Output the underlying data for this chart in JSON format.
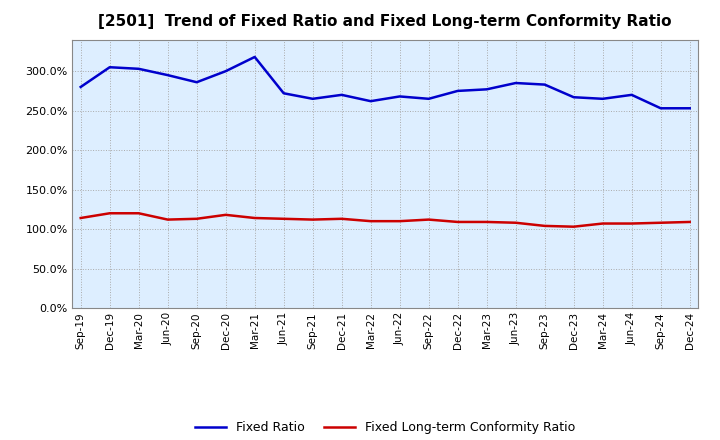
{
  "title": "[2501]  Trend of Fixed Ratio and Fixed Long-term Conformity Ratio",
  "x_labels": [
    "Sep-19",
    "Dec-19",
    "Mar-20",
    "Jun-20",
    "Sep-20",
    "Dec-20",
    "Mar-21",
    "Jun-21",
    "Sep-21",
    "Dec-21",
    "Mar-22",
    "Jun-22",
    "Sep-22",
    "Dec-22",
    "Mar-23",
    "Jun-23",
    "Sep-23",
    "Dec-23",
    "Mar-24",
    "Jun-24",
    "Sep-24",
    "Dec-24"
  ],
  "fixed_ratio": [
    280.0,
    305.0,
    303.0,
    295.0,
    286.0,
    300.0,
    318.0,
    272.0,
    265.0,
    270.0,
    262.0,
    268.0,
    265.0,
    275.0,
    277.0,
    285.0,
    283.0,
    267.0,
    265.0,
    270.0,
    253.0,
    253.0
  ],
  "fixed_lt_ratio": [
    114.0,
    120.0,
    120.0,
    112.0,
    113.0,
    118.0,
    114.0,
    113.0,
    112.0,
    113.0,
    110.0,
    110.0,
    112.0,
    109.0,
    109.0,
    108.0,
    104.0,
    103.0,
    107.0,
    107.0,
    108.0,
    109.0
  ],
  "fixed_ratio_color": "#0000CC",
  "fixed_lt_ratio_color": "#CC0000",
  "bg_color": "#FFFFFF",
  "plot_bg_color": "#DDEEFF",
  "grid_color": "#AAAAAA",
  "ylim": [
    0.0,
    340.0
  ],
  "yticks": [
    0.0,
    50.0,
    100.0,
    150.0,
    200.0,
    250.0,
    300.0
  ],
  "legend_labels": [
    "Fixed Ratio",
    "Fixed Long-term Conformity Ratio"
  ]
}
